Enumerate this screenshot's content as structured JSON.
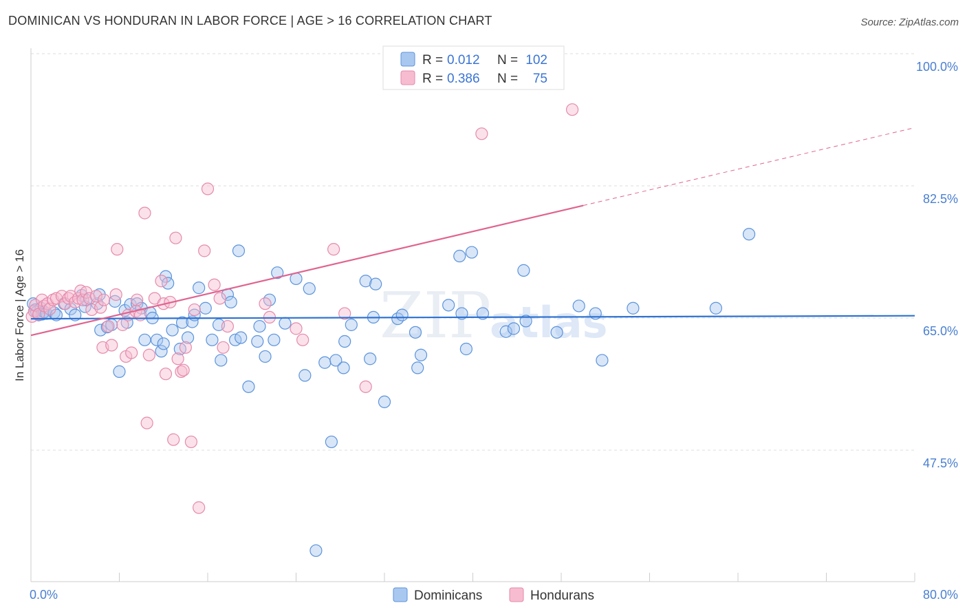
{
  "title": "DOMINICAN VS HONDURAN IN LABOR FORCE | AGE > 16 CORRELATION CHART",
  "source": "Source: ZipAtlas.com",
  "watermark": {
    "zip": "ZIP",
    "atlas": "atlas"
  },
  "colors": {
    "dominican_fill": "#a9c8f0",
    "dominican_stroke": "#5b93dc",
    "dominican_line": "#2e72d2",
    "honduran_fill": "#f7bcd0",
    "honduran_stroke": "#e58aab",
    "honduran_line": "#e0638f",
    "grid": "#dddddd",
    "tick_label": "#4a7fd0"
  },
  "legend": {
    "rows": [
      {
        "r_label": "R =",
        "r_value": "0.012",
        "n_label": "N =",
        "n_value": "102"
      },
      {
        "r_label": "R =",
        "r_value": "0.386",
        "n_label": "N =",
        "n_value": "75"
      }
    ]
  },
  "chart_data": {
    "type": "scatter",
    "title": "DOMINICAN VS HONDURAN IN LABOR FORCE | AGE > 16 CORRELATION CHART",
    "xlabel": "",
    "ylabel": "In Labor Force | Age > 16",
    "xlim": [
      0,
      80
    ],
    "ylim": [
      30,
      102
    ],
    "x_tick_labels": [
      "0.0%",
      "80.0%"
    ],
    "y_ticks": [
      47.5,
      65.0,
      82.5,
      100.0
    ],
    "y_tick_labels": [
      "47.5%",
      "65.0%",
      "82.5%",
      "100.0%"
    ],
    "grid": "horizontal dashed",
    "legend_position": "top-center",
    "series": [
      {
        "name": "Dominicans",
        "trend": {
          "x": [
            0,
            80
          ],
          "y": [
            64.9,
            65.3
          ]
        },
        "points": [
          [
            0.2,
            66.9
          ],
          [
            0.4,
            66.1
          ],
          [
            0.5,
            65.8
          ],
          [
            0.7,
            65.4
          ],
          [
            0.9,
            66.3
          ],
          [
            1.0,
            65.5
          ],
          [
            1.2,
            65.8
          ],
          [
            1.4,
            65.6
          ],
          [
            2.1,
            65.7
          ],
          [
            2.3,
            65.4
          ],
          [
            3.0,
            66.9
          ],
          [
            3.6,
            66.2
          ],
          [
            4.0,
            65.4
          ],
          [
            4.6,
            68.0
          ],
          [
            4.9,
            66.5
          ],
          [
            5.0,
            67.4
          ],
          [
            6.0,
            66.9
          ],
          [
            6.2,
            68.1
          ],
          [
            6.3,
            63.4
          ],
          [
            6.9,
            63.8
          ],
          [
            7.3,
            64.1
          ],
          [
            7.6,
            67.2
          ],
          [
            8.0,
            57.9
          ],
          [
            8.5,
            66.0
          ],
          [
            8.7,
            64.4
          ],
          [
            9.0,
            66.8
          ],
          [
            9.6,
            66.9
          ],
          [
            10.0,
            66.3
          ],
          [
            10.3,
            62.1
          ],
          [
            10.8,
            65.7
          ],
          [
            11.0,
            65.0
          ],
          [
            11.4,
            62.1
          ],
          [
            11.8,
            60.6
          ],
          [
            12.0,
            61.6
          ],
          [
            12.2,
            70.5
          ],
          [
            12.4,
            69.6
          ],
          [
            12.8,
            63.4
          ],
          [
            13.5,
            60.9
          ],
          [
            13.7,
            64.4
          ],
          [
            14.2,
            62.4
          ],
          [
            14.6,
            64.5
          ],
          [
            14.8,
            65.4
          ],
          [
            15.2,
            69.0
          ],
          [
            15.8,
            66.3
          ],
          [
            16.4,
            62.1
          ],
          [
            17.0,
            64.1
          ],
          [
            17.2,
            59.4
          ],
          [
            17.8,
            68.1
          ],
          [
            18.1,
            67.1
          ],
          [
            18.5,
            62.1
          ],
          [
            18.8,
            73.9
          ],
          [
            19.0,
            62.4
          ],
          [
            19.7,
            55.9
          ],
          [
            20.5,
            61.9
          ],
          [
            20.7,
            63.9
          ],
          [
            21.2,
            59.9
          ],
          [
            21.6,
            67.4
          ],
          [
            22.0,
            62.1
          ],
          [
            22.3,
            71.0
          ],
          [
            23.0,
            64.3
          ],
          [
            24.0,
            70.2
          ],
          [
            24.8,
            57.4
          ],
          [
            25.2,
            68.9
          ],
          [
            25.8,
            34.2
          ],
          [
            26.6,
            59.1
          ],
          [
            27.2,
            48.6
          ],
          [
            27.6,
            59.4
          ],
          [
            28.3,
            58.4
          ],
          [
            28.4,
            61.9
          ],
          [
            29.0,
            64.1
          ],
          [
            30.3,
            69.9
          ],
          [
            30.7,
            59.6
          ],
          [
            31.0,
            65.1
          ],
          [
            31.2,
            69.5
          ],
          [
            32.0,
            53.9
          ],
          [
            33.2,
            64.9
          ],
          [
            33.6,
            65.4
          ],
          [
            34.8,
            63.1
          ],
          [
            35.0,
            58.4
          ],
          [
            35.3,
            60.1
          ],
          [
            37.8,
            66.7
          ],
          [
            38.8,
            73.2
          ],
          [
            39.0,
            65.6
          ],
          [
            39.4,
            60.9
          ],
          [
            39.9,
            73.7
          ],
          [
            40.9,
            65.6
          ],
          [
            43.0,
            63.2
          ],
          [
            43.7,
            63.6
          ],
          [
            44.6,
            71.3
          ],
          [
            44.8,
            64.6
          ],
          [
            47.6,
            63.1
          ],
          [
            49.6,
            66.6
          ],
          [
            51.1,
            65.6
          ],
          [
            51.7,
            59.4
          ],
          [
            54.5,
            66.3
          ],
          [
            62.0,
            66.3
          ],
          [
            65.0,
            76.1
          ]
        ]
      },
      {
        "name": "Hondurans",
        "trend": {
          "x": [
            0,
            50
          ],
          "y": [
            62.7,
            79.9
          ]
        },
        "trend_extension": {
          "x": [
            50,
            80
          ],
          "y": [
            79.9,
            90.2
          ]
        },
        "points": [
          [
            0.1,
            65.2
          ],
          [
            0.3,
            65.9
          ],
          [
            0.4,
            66.7
          ],
          [
            0.7,
            65.5
          ],
          [
            1.0,
            67.4
          ],
          [
            1.2,
            66.6
          ],
          [
            1.5,
            66.9
          ],
          [
            1.7,
            66.2
          ],
          [
            2.0,
            67.4
          ],
          [
            2.3,
            67.6
          ],
          [
            2.8,
            67.9
          ],
          [
            3.1,
            66.9
          ],
          [
            3.4,
            67.6
          ],
          [
            3.6,
            67.9
          ],
          [
            4.0,
            67.1
          ],
          [
            4.3,
            67.6
          ],
          [
            4.5,
            68.6
          ],
          [
            4.7,
            67.4
          ],
          [
            5.0,
            68.4
          ],
          [
            5.3,
            67.6
          ],
          [
            5.5,
            66.1
          ],
          [
            5.9,
            67.9
          ],
          [
            6.3,
            66.4
          ],
          [
            6.5,
            61.1
          ],
          [
            6.6,
            67.4
          ],
          [
            7.0,
            63.9
          ],
          [
            7.3,
            61.4
          ],
          [
            7.7,
            68.1
          ],
          [
            7.8,
            74.1
          ],
          [
            8.3,
            64.1
          ],
          [
            8.6,
            59.9
          ],
          [
            8.8,
            65.4
          ],
          [
            9.1,
            60.4
          ],
          [
            9.5,
            65.9
          ],
          [
            9.6,
            67.4
          ],
          [
            9.9,
            65.4
          ],
          [
            10.3,
            78.9
          ],
          [
            10.5,
            51.1
          ],
          [
            10.7,
            60.1
          ],
          [
            11.2,
            67.6
          ],
          [
            11.8,
            69.9
          ],
          [
            12.0,
            66.9
          ],
          [
            12.2,
            57.6
          ],
          [
            12.6,
            67.1
          ],
          [
            12.9,
            48.9
          ],
          [
            13.1,
            75.6
          ],
          [
            13.3,
            59.6
          ],
          [
            13.6,
            57.9
          ],
          [
            13.8,
            58.1
          ],
          [
            14.0,
            61.1
          ],
          [
            14.5,
            48.6
          ],
          [
            14.8,
            66.1
          ],
          [
            15.2,
            39.9
          ],
          [
            15.7,
            73.9
          ],
          [
            16.0,
            82.1
          ],
          [
            16.6,
            69.4
          ],
          [
            17.1,
            67.6
          ],
          [
            17.4,
            61.1
          ],
          [
            17.8,
            63.9
          ],
          [
            21.2,
            66.9
          ],
          [
            21.6,
            65.1
          ],
          [
            24.0,
            63.6
          ],
          [
            24.6,
            62.1
          ],
          [
            27.4,
            74.1
          ],
          [
            28.4,
            65.6
          ],
          [
            30.3,
            55.9
          ],
          [
            40.8,
            89.4
          ],
          [
            41.8,
            99.3
          ],
          [
            49.0,
            92.6
          ]
        ]
      }
    ]
  },
  "bottom_legend": {
    "items": [
      {
        "label": "Dominicans"
      },
      {
        "label": "Hondurans"
      }
    ]
  }
}
